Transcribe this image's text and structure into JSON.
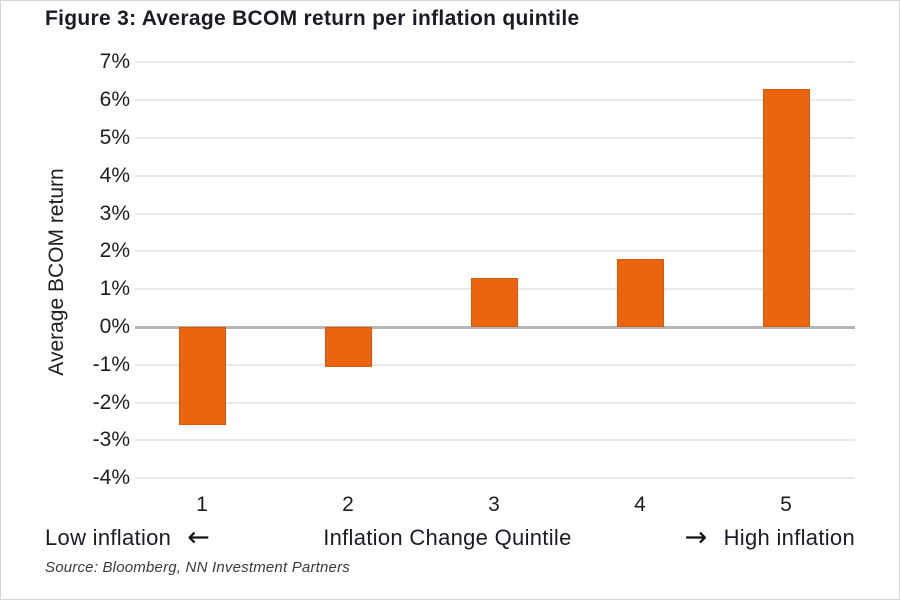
{
  "figure": {
    "title": "Figure 3: Average BCOM return per inflation quintile",
    "source": "Source: Bloomberg, NN Investment Partners"
  },
  "axis_annotations": {
    "left_label": "Low inflation",
    "left_arrow": "←",
    "center_label": "Inflation Change Quintile",
    "right_arrow": "→",
    "right_label": "High inflation"
  },
  "colors": {
    "bar": "#EB650F",
    "bar_edge": "#D4590A",
    "zero_line": "#b5b5b5",
    "gridline": "#e9e9e9",
    "title_text": "#1b1b26",
    "axis_text": "#1e1e1e",
    "source_text": "#3a3a3a"
  },
  "chart_data": {
    "type": "bar",
    "title": "Figure 3: Average BCOM return per inflation quintile",
    "categories": [
      "1",
      "2",
      "3",
      "4",
      "5"
    ],
    "values": [
      -2.6,
      -1.05,
      1.3,
      1.8,
      6.3
    ],
    "xlabel": "Inflation Change Quintile",
    "ylabel": "Average BCOM return",
    "ylim": [
      -4,
      7
    ],
    "ytick_step": 1,
    "ytick_labels": [
      "7%",
      "6%",
      "5%",
      "4%",
      "3%",
      "2%",
      "1%",
      "0%",
      "-1%",
      "-2%",
      "-3%",
      "-4%"
    ],
    "grid": true,
    "legend": "none",
    "bar_color": "#EB650F",
    "x_axis_note_low": "Low inflation",
    "x_axis_note_high": "High inflation"
  }
}
